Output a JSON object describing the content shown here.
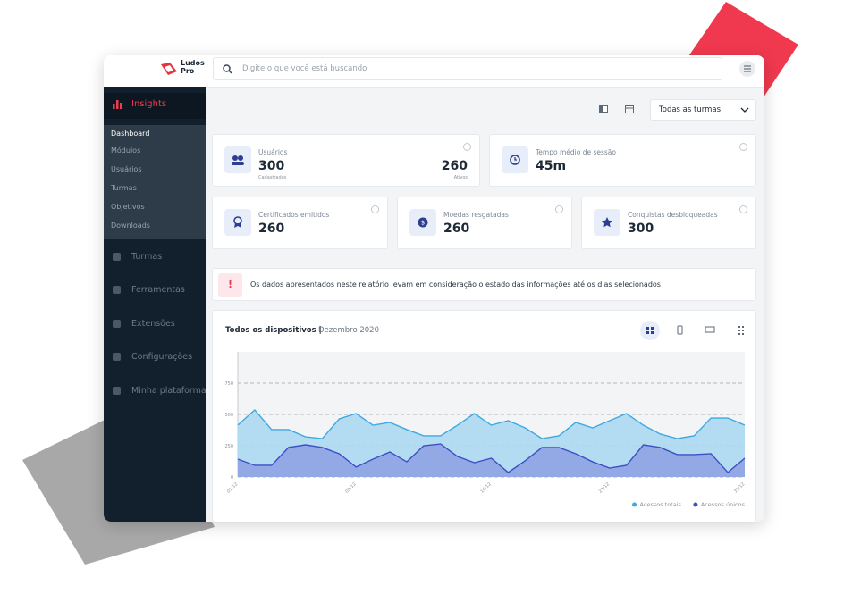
{
  "header": {
    "logo": "Ludos",
    "logo_sub": "Pro",
    "search_placeholder": "Digite o que você está buscando"
  },
  "sidebar": {
    "active": "Insights",
    "submenu": [
      "Dashboard",
      "Módulos",
      "Usuários",
      "Turmas",
      "Objetivos",
      "Downloads"
    ],
    "menu": [
      "Turmas",
      "Ferramentas",
      "Extensões",
      "Configurações",
      "Minha plataforma"
    ]
  },
  "filter": "Todas as turmas",
  "cards": [
    {
      "title": "Usuários",
      "value": 300,
      "caption": "Cadastrados",
      "value2": 260,
      "caption2": "Ativos"
    },
    {
      "title": "Tempo médio de sessão",
      "value": "45m"
    },
    {
      "title": "Certificados emitidos",
      "value": 260
    },
    {
      "title": "Moedas resgatadas",
      "value": 260
    },
    {
      "title": "Conquistas desbloqueadas",
      "value": 300
    }
  ],
  "alert": "Os dados apresentados neste relatório levam em consideração o estado das informações até os dias selecionados",
  "chart_data": {
    "type": "area",
    "title": "Todos os dispositivos |",
    "subtitle": "Dezembro 2020",
    "categories": [
      "01/12",
      null,
      null,
      null,
      null,
      null,
      null,
      "08/12",
      null,
      null,
      null,
      null,
      null,
      null,
      null,
      "16/12",
      null,
      null,
      null,
      null,
      null,
      null,
      "23/12",
      null,
      null,
      null,
      null,
      null,
      null,
      null,
      "31/12"
    ],
    "series": [
      {
        "name": "Acessos totais",
        "color": "#3fa9e0",
        "fill": "#acd9f3",
        "values": [
          414,
          536,
          379,
          379,
          321,
          307,
          464,
          507,
          414,
          436,
          379,
          329,
          329,
          414,
          507,
          414,
          450,
          393,
          307,
          329,
          436,
          393,
          450,
          507,
          414,
          343,
          307,
          329,
          471,
          471,
          414
        ]
      },
      {
        "name": "Acessos únicos",
        "color": "#3d4fc4",
        "fill": "#8fa3e4",
        "values": [
          143,
          93,
          93,
          236,
          257,
          236,
          186,
          79,
          143,
          200,
          121,
          250,
          264,
          164,
          114,
          150,
          36,
          129,
          236,
          236,
          186,
          121,
          71,
          93,
          257,
          236,
          179,
          179,
          186,
          36,
          150
        ]
      }
    ],
    "ylim": [
      0,
      1000
    ],
    "yticks": [
      0,
      250,
      500,
      750
    ],
    "grid": true,
    "legend": "bottom-right"
  }
}
